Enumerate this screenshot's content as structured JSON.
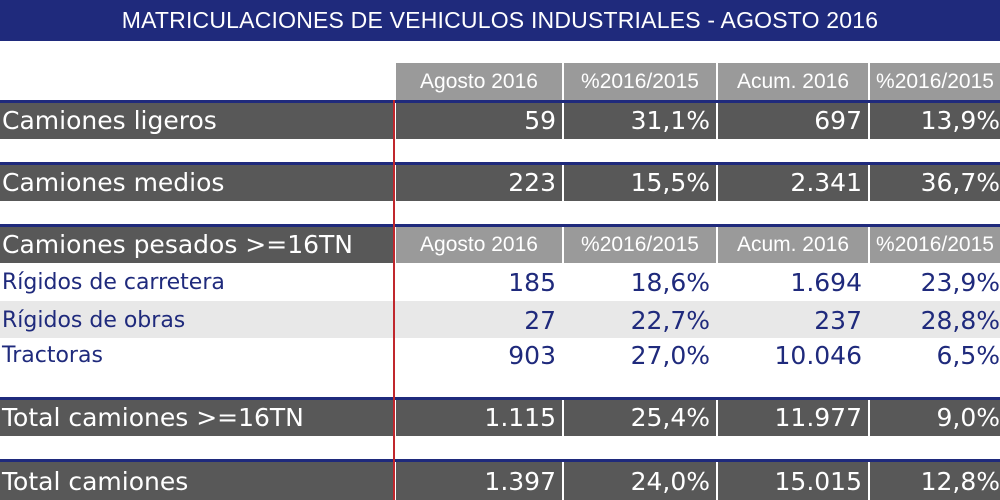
{
  "title": "MATRICULACIONES DE VEHICULOS INDUSTRIALES - AGOSTO 2016",
  "columns": [
    "Agosto 2016",
    "%2016/2015",
    "Acum. 2016",
    "%2016/2015"
  ],
  "camiones_ligeros": {
    "label": "Camiones ligeros",
    "values": [
      "59",
      "31,1%",
      "697",
      "13,9%"
    ]
  },
  "camiones_medios": {
    "label": "Camiones medios",
    "values": [
      "223",
      "15,5%",
      "2.341",
      "36,7%"
    ]
  },
  "pesados_header": {
    "label": "Camiones pesados >=16TN",
    "columns": [
      "Agosto 2016",
      "%2016/2015",
      "Acum. 2016",
      "%2016/2015"
    ]
  },
  "rigidos_carretera": {
    "label": "Rígidos de carretera",
    "values": [
      "185",
      "18,6%",
      "1.694",
      "23,9%"
    ]
  },
  "rigidos_obras": {
    "label": "Rígidos de obras",
    "values": [
      "27",
      "22,7%",
      "237",
      "28,8%"
    ]
  },
  "tractoras": {
    "label": "Tractoras",
    "values": [
      "903",
      "27,0%",
      "10.046",
      "6,5%"
    ]
  },
  "total_pesados": {
    "label": "Total camiones >=16TN",
    "values": [
      "1.115",
      "25,4%",
      "11.977",
      "9,0%"
    ]
  },
  "total_camiones": {
    "label": "Total camiones",
    "values": [
      "1.397",
      "24,0%",
      "15.015",
      "12,8%"
    ]
  },
  "colors": {
    "title_bg": "#1f2a7c",
    "header_bg": "#9a9a9a",
    "dark_row_bg": "#585858",
    "accent_line": "#c0272d",
    "body_text": "#1f2a7c"
  }
}
